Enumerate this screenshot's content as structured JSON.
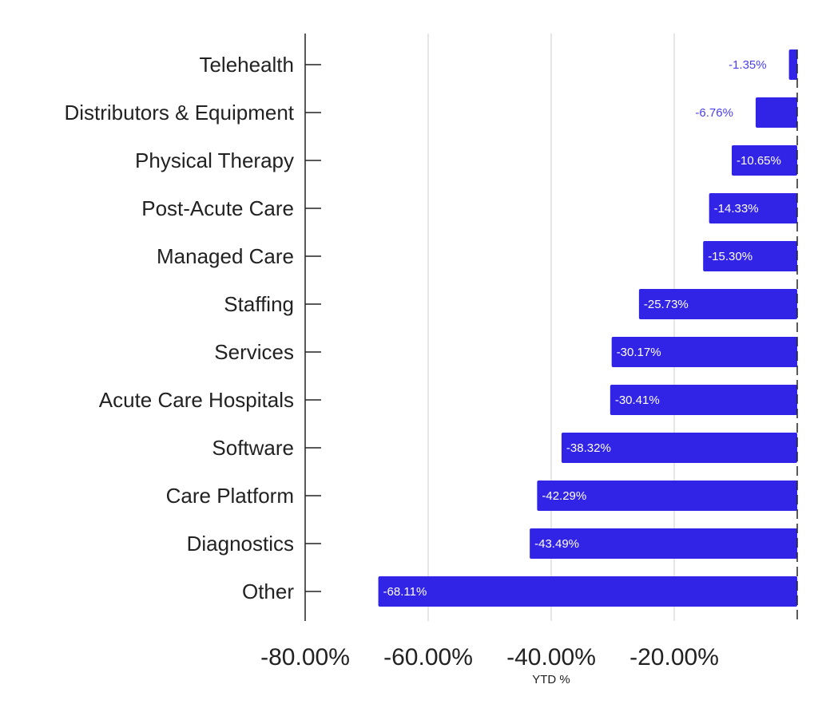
{
  "chart_data": {
    "type": "bar",
    "orientation": "horizontal",
    "categories": [
      "Telehealth",
      "Distributors & Equipment",
      "Physical Therapy",
      "Post-Acute Care",
      "Managed Care",
      "Staffing",
      "Services",
      "Acute Care Hospitals",
      "Software",
      "Care Platform",
      "Diagnostics",
      "Other"
    ],
    "values": [
      -1.35,
      -6.76,
      -10.65,
      -14.33,
      -15.3,
      -25.73,
      -30.17,
      -30.41,
      -38.32,
      -42.29,
      -43.49,
      -68.11
    ],
    "data_labels": [
      "-1.35%",
      "-6.76%",
      "-10.65%",
      "-14.33%",
      "-15.30%",
      "-25.73%",
      "-30.17%",
      "-30.41%",
      "-38.32%",
      "-42.29%",
      "-43.49%",
      "-68.11%"
    ],
    "title": "",
    "xlabel": "YTD %",
    "ylabel": "",
    "xlim": [
      -80,
      0
    ],
    "x_ticks": [
      -80,
      -60,
      -40,
      -20
    ],
    "x_tick_labels": [
      "-80.00%",
      "-60.00%",
      "-40.00%",
      "-20.00%"
    ],
    "grid": true,
    "legend": "none",
    "colors": {
      "bar": "#3124e6",
      "label_inside": "#ffffff",
      "label_outside": "#4a3ff0",
      "grid": "#cccccc",
      "axis": "#222222"
    }
  }
}
